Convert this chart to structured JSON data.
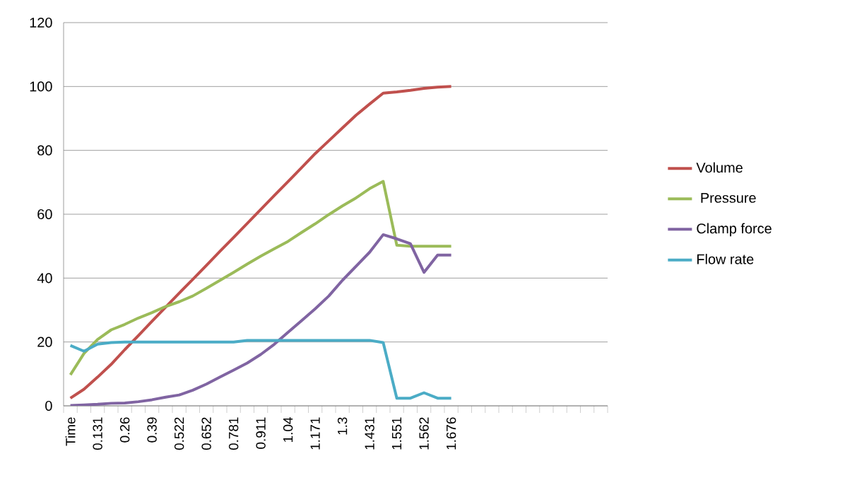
{
  "chart_data": {
    "type": "line",
    "categories": [
      "Time",
      null,
      "0.131",
      null,
      "0.26",
      null,
      "0.39",
      null,
      "0.522",
      null,
      "0.652",
      null,
      "0.781",
      null,
      "0.911",
      null,
      "1.04",
      null,
      "1.171",
      null,
      "1.3",
      null,
      "1.431",
      null,
      "1.551",
      null,
      "1.562",
      null,
      "1.676",
      null,
      null,
      null,
      null,
      null,
      null,
      null,
      null,
      null,
      null,
      null
    ],
    "series": [
      {
        "name": "Volume",
        "color": "#c0504d",
        "values": [
          2.4,
          5.2,
          9,
          13,
          17.6,
          22,
          26.5,
          30.9,
          35.3,
          39.6,
          44,
          48.4,
          52.7,
          57.1,
          61.5,
          65.9,
          70.2,
          74.6,
          79,
          83,
          87,
          91,
          94.5,
          97.9,
          98.3,
          98.8,
          99.4,
          99.8,
          100,
          null,
          null,
          null,
          null,
          null,
          null,
          null,
          null,
          null,
          null,
          null
        ]
      },
      {
        "name": " Pressure",
        "color": "#9bbb59",
        "values": [
          9.7,
          16.4,
          20.8,
          23.8,
          25.5,
          27.5,
          29.2,
          31.1,
          32.6,
          34.4,
          36.8,
          39.3,
          41.8,
          44.4,
          46.9,
          49.2,
          51.5,
          54.3,
          57,
          59.9,
          62.6,
          65.1,
          68,
          70.3,
          50.3,
          50,
          50,
          50,
          50,
          null,
          null,
          null,
          null,
          null,
          null,
          null,
          null,
          null,
          null,
          null
        ]
      },
      {
        "name": "Clamp force",
        "color": "#8064a2",
        "values": [
          0.1,
          0.3,
          0.5,
          0.8,
          0.9,
          1.3,
          1.9,
          2.7,
          3.4,
          4.9,
          6.8,
          9,
          11.2,
          13.4,
          16.1,
          19.3,
          23,
          26.7,
          30.4,
          34.4,
          39.3,
          43.7,
          48.1,
          53.6,
          52.3,
          50.8,
          41.8,
          47.2,
          47.2,
          null,
          null,
          null,
          null,
          null,
          null,
          null,
          null,
          null,
          null,
          null
        ]
      },
      {
        "name": "Flow rate",
        "color": "#4bacc6",
        "values": [
          18.9,
          17.1,
          19.3,
          19.8,
          20,
          20,
          20,
          20,
          20,
          20,
          20,
          20,
          20,
          20.5,
          20.5,
          20.5,
          20.5,
          20.5,
          20.5,
          20.5,
          20.5,
          20.5,
          20.5,
          19.8,
          2.4,
          2.4,
          4.1,
          2.4,
          2.4,
          null,
          null,
          null,
          null,
          null,
          null,
          null,
          null,
          null,
          null,
          null
        ]
      }
    ],
    "ylim": [
      0,
      120
    ],
    "yticks": [
      0,
      20,
      40,
      60,
      80,
      100,
      120
    ],
    "grid": "y",
    "legend": "right",
    "marker": "none",
    "line_style": "solid"
  }
}
